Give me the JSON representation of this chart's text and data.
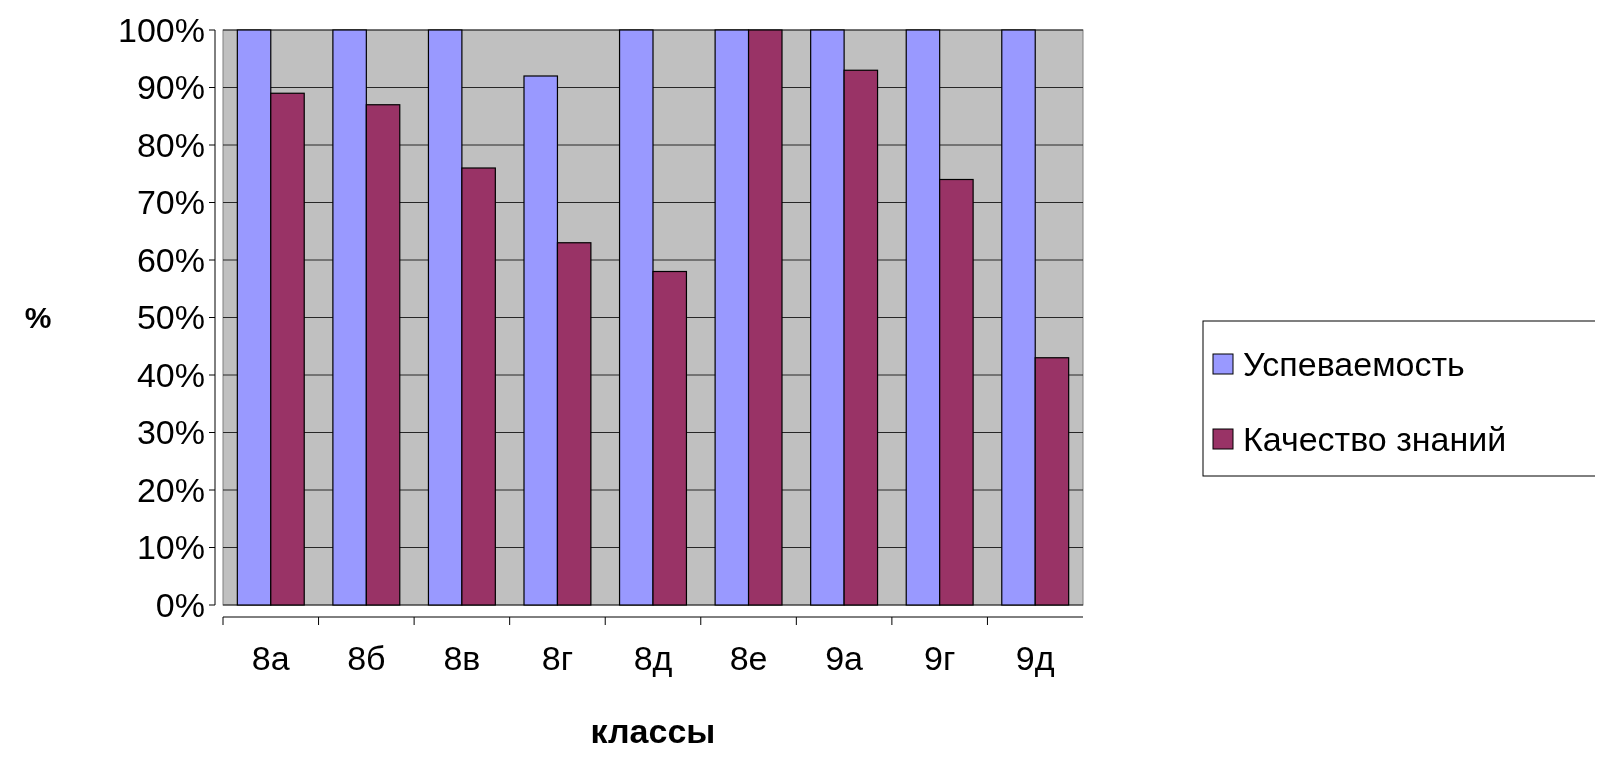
{
  "chart_data": {
    "type": "bar",
    "xlabel": "классы",
    "ylabel": "%",
    "categories": [
      "8а",
      "8б",
      "8в",
      "8г",
      "8д",
      "8е",
      "9а",
      "9г",
      "9д"
    ],
    "series": [
      {
        "name": "Успеваемость",
        "color": "#9999ff",
        "values": [
          100,
          100,
          100,
          92,
          100,
          100,
          100,
          100,
          100
        ]
      },
      {
        "name": "Качество знаний",
        "color": "#993366",
        "values": [
          89,
          87,
          76,
          63,
          58,
          100,
          93,
          74,
          43
        ]
      }
    ],
    "ylim": [
      0,
      100
    ],
    "yticks": [
      {
        "value": 0,
        "label": "0%"
      },
      {
        "value": 10,
        "label": "10%"
      },
      {
        "value": 20,
        "label": "20%"
      },
      {
        "value": 30,
        "label": "30%"
      },
      {
        "value": 40,
        "label": "40%"
      },
      {
        "value": 50,
        "label": "50%"
      },
      {
        "value": 60,
        "label": "60%"
      },
      {
        "value": 70,
        "label": "70%"
      },
      {
        "value": 80,
        "label": "80%"
      },
      {
        "value": 90,
        "label": "90%"
      },
      {
        "value": 100,
        "label": "100%"
      }
    ],
    "grid": "y",
    "legend": "right"
  }
}
